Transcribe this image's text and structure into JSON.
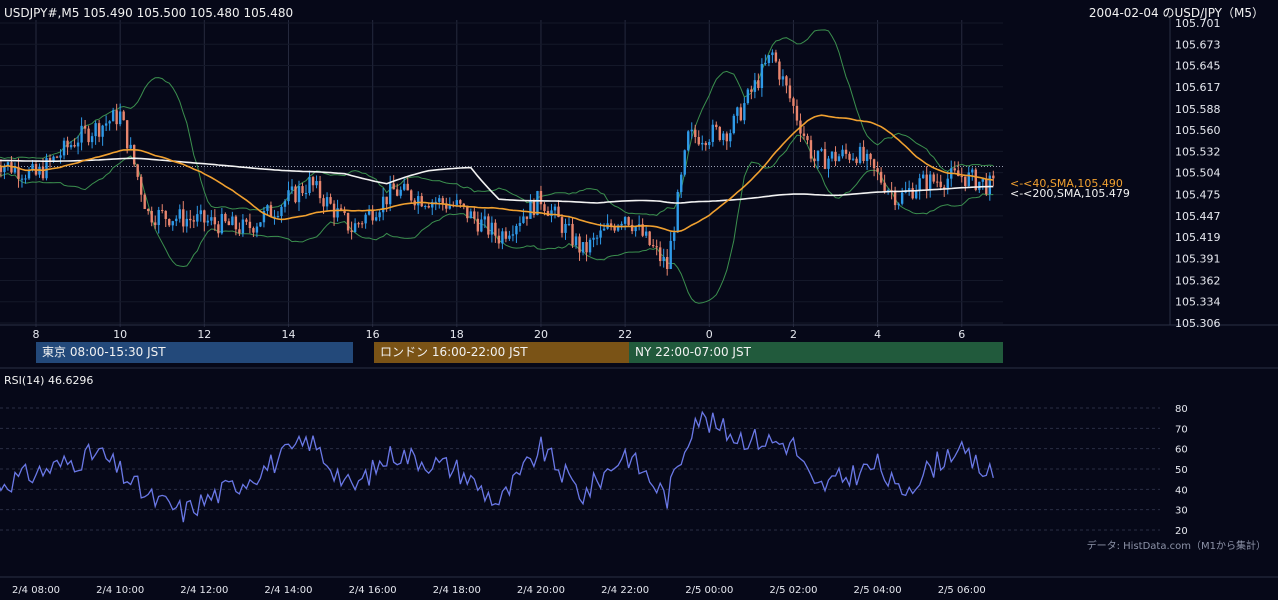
{
  "header": {
    "symbol_line": "USDJPY#,M5 105.490 105.500 105.480 105.480",
    "title": "2004-02-04 のUSD/JPY（M5）"
  },
  "sessions": [
    {
      "label": "東京 08:00-15:30 JST",
      "color": "#23497a"
    },
    {
      "label": "ロンドン 16:00-22:00 JST",
      "color": "#7a5316"
    },
    {
      "label": "NY 22:00-07:00 JST",
      "color": "#215a3c"
    }
  ],
  "rsi": {
    "label": "RSI(14) 46.6296"
  },
  "credit": "データ: HistData.com（M1から集計）",
  "colors": {
    "up": "#2f9ae8",
    "down": "#e8856e",
    "sma40": "#f0a030",
    "sma200": "#f2f2f2",
    "bollinger": "#3b8f4e",
    "rsi": "#6a78e6",
    "grid": "#262a3e"
  },
  "chart_data": [
    {
      "type": "candlestick",
      "price_ticks": [
        "105.701",
        "105.673",
        "105.645",
        "105.617",
        "105.588",
        "105.560",
        "105.532",
        "105.504",
        "105.475",
        "105.447",
        "105.419",
        "105.391",
        "105.362",
        "105.334",
        "105.306"
      ],
      "ylim": [
        105.306,
        105.701
      ],
      "hour_ticks": [
        "8",
        "10",
        "12",
        "14",
        "16",
        "18",
        "20",
        "22",
        "0",
        "2",
        "4",
        "6"
      ],
      "series": [
        {
          "name": "40,SMA",
          "last": 105.49,
          "label": "<-<40,SMA,105.490"
        },
        {
          "name": "200,SMA",
          "last": 105.479,
          "label": "<-<200,SMA,105.479"
        }
      ],
      "current_price": 105.48,
      "keypoints": [
        {
          "time": "07:00",
          "price": 105.52
        },
        {
          "time": "08:00",
          "price": 105.5
        },
        {
          "time": "09:00",
          "price": 105.55
        },
        {
          "time": "10:00",
          "price": 105.58
        },
        {
          "time": "10:40",
          "price": 105.45
        },
        {
          "time": "12:00",
          "price": 105.44
        },
        {
          "time": "13:00",
          "price": 105.43
        },
        {
          "time": "14:30",
          "price": 105.49
        },
        {
          "time": "15:30",
          "price": 105.43
        },
        {
          "time": "16:30",
          "price": 105.48
        },
        {
          "time": "18:00",
          "price": 105.46
        },
        {
          "time": "19:00",
          "price": 105.42
        },
        {
          "time": "20:00",
          "price": 105.47
        },
        {
          "time": "21:00",
          "price": 105.4
        },
        {
          "time": "22:00",
          "price": 105.45
        },
        {
          "time": "23:00",
          "price": 105.38
        },
        {
          "time": "23:30",
          "price": 105.55
        },
        {
          "time": "00:30",
          "price": 105.56
        },
        {
          "time": "01:30",
          "price": 105.66
        },
        {
          "time": "02:30",
          "price": 105.52
        },
        {
          "time": "03:30",
          "price": 105.53
        },
        {
          "time": "04:30",
          "price": 105.47
        },
        {
          "time": "05:00",
          "price": 105.49
        },
        {
          "time": "06:00",
          "price": 105.5
        },
        {
          "time": "07:00",
          "price": 105.48
        }
      ]
    },
    {
      "type": "line",
      "name": "RSI(14)",
      "y_ticks": [
        "80",
        "70",
        "60",
        "50",
        "40",
        "30",
        "20"
      ],
      "ylim": [
        20,
        80
      ],
      "x_ticks": [
        "2/4 08:00",
        "2/4 10:00",
        "2/4 12:00",
        "2/4 14:00",
        "2/4 16:00",
        "2/4 18:00",
        "2/4 20:00",
        "2/4 22:00",
        "2/5 00:00",
        "2/5 02:00",
        "2/5 04:00",
        "2/5 06:00"
      ],
      "keypoints": [
        {
          "time": "07:00",
          "value": 42
        },
        {
          "time": "08:00",
          "value": 48
        },
        {
          "time": "09:30",
          "value": 58
        },
        {
          "time": "10:40",
          "value": 36
        },
        {
          "time": "11:30",
          "value": 29
        },
        {
          "time": "13:00",
          "value": 45
        },
        {
          "time": "14:30",
          "value": 64
        },
        {
          "time": "15:30",
          "value": 40
        },
        {
          "time": "16:30",
          "value": 58
        },
        {
          "time": "18:00",
          "value": 50
        },
        {
          "time": "19:00",
          "value": 33
        },
        {
          "time": "20:00",
          "value": 60
        },
        {
          "time": "21:00",
          "value": 37
        },
        {
          "time": "22:00",
          "value": 58
        },
        {
          "time": "23:00",
          "value": 36
        },
        {
          "time": "23:40",
          "value": 76
        },
        {
          "time": "00:40",
          "value": 66
        },
        {
          "time": "02:00",
          "value": 62
        },
        {
          "time": "02:30",
          "value": 40
        },
        {
          "time": "04:00",
          "value": 52
        },
        {
          "time": "04:30",
          "value": 38
        },
        {
          "time": "05:50",
          "value": 60
        },
        {
          "time": "06:40",
          "value": 47
        }
      ]
    }
  ]
}
